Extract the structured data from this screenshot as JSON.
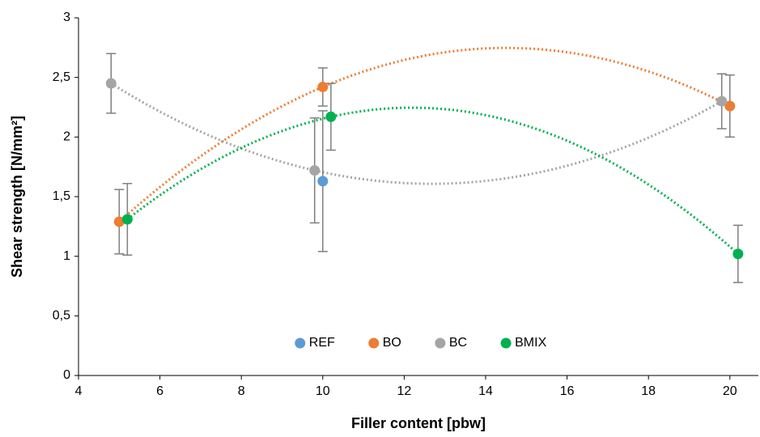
{
  "chart_data": {
    "type": "scatter",
    "x_label": "Filler content [pbw]",
    "y_label": "Shear strength [N/mm²]",
    "xlim": [
      4,
      20.7
    ],
    "xticks": [
      4,
      6,
      8,
      10,
      12,
      14,
      16,
      18,
      20
    ],
    "ylim": [
      0,
      3
    ],
    "yticks": [
      0,
      {
        "value": 0.5,
        "label": "0,5"
      },
      1,
      {
        "value": 1.5,
        "label": "1,5"
      },
      2,
      {
        "value": 2.5,
        "label": "2,5"
      },
      3
    ],
    "legend": "bottom",
    "series": [
      {
        "name": "REF",
        "color": "#5b9bd5",
        "x": [
          10
        ],
        "values": [
          1.63
        ],
        "errors": [
          0.59
        ],
        "trendline": false
      },
      {
        "name": "BO",
        "color": "#ed7d31",
        "x": [
          5,
          10,
          20
        ],
        "values": [
          1.29,
          2.42,
          2.26
        ],
        "errors": [
          0.27,
          0.16,
          0.26
        ],
        "trendline": true
      },
      {
        "name": "BC",
        "color": "#a5a5a5",
        "x": [
          4.8,
          9.8,
          19.8
        ],
        "values": [
          2.45,
          1.72,
          2.3
        ],
        "errors": [
          0.25,
          0.44,
          0.23
        ],
        "trendline": true
      },
      {
        "name": "BMIX",
        "color": "#00b050",
        "x": [
          5.2,
          10.2,
          20.2
        ],
        "values": [
          1.31,
          2.17,
          1.02
        ],
        "errors": [
          0.3,
          0.28,
          0.24
        ],
        "trendline": true
      }
    ]
  }
}
